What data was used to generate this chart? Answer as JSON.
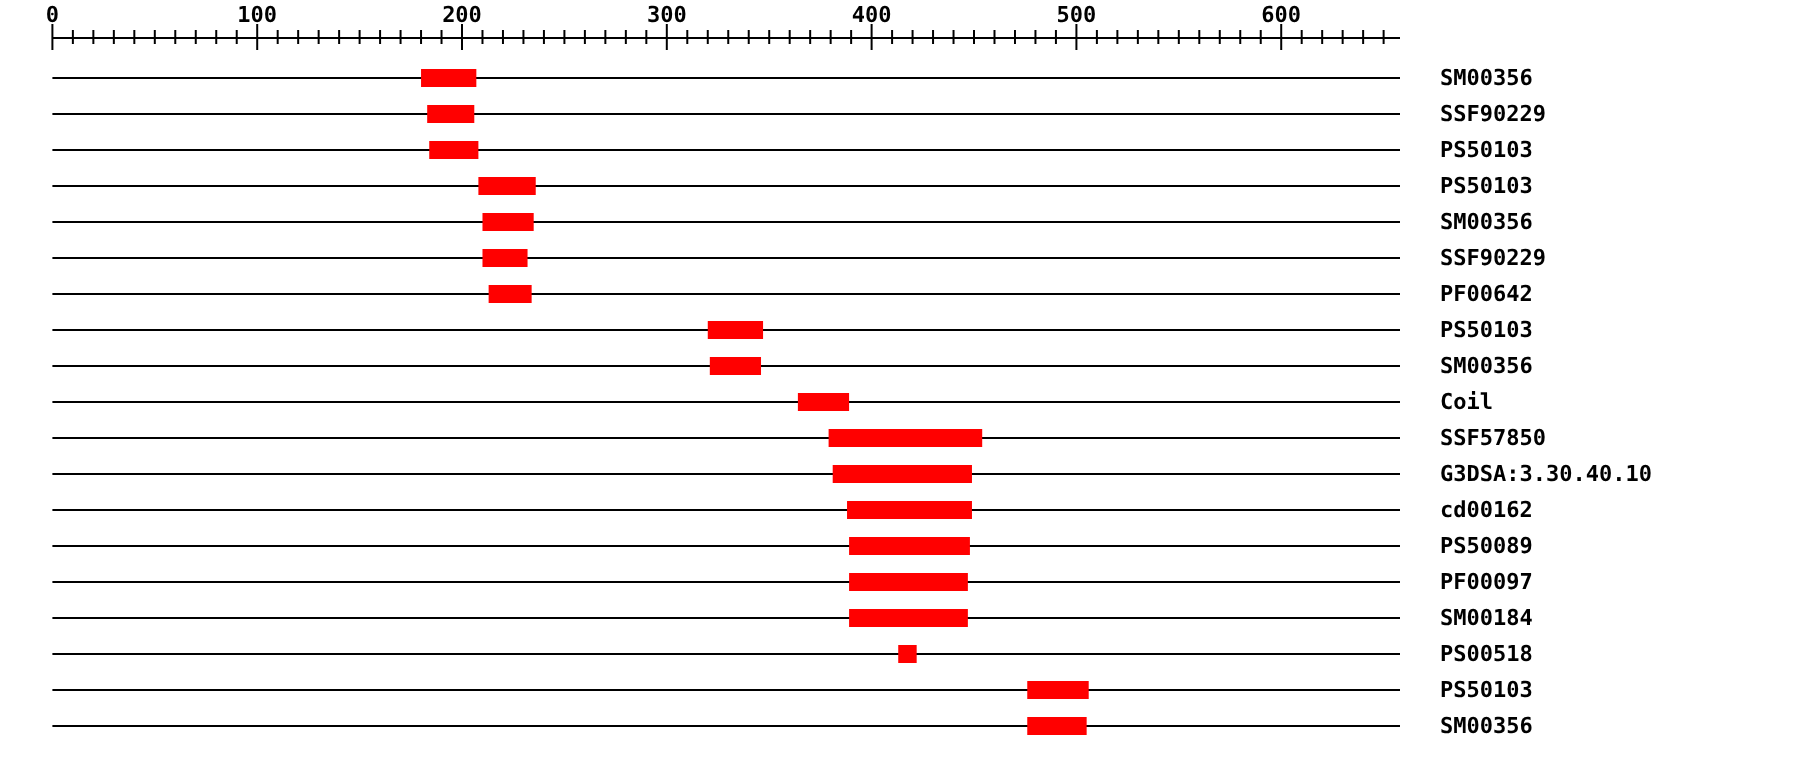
{
  "chart_data": {
    "type": "bar",
    "orientation": "horizontal",
    "color": "#ff0000",
    "grid": "y",
    "categories": [
      "SM00356",
      "SSF90229",
      "PS50103",
      "PS50103",
      "SM00356",
      "SSF90229",
      "PF00642",
      "PS50103",
      "SM00356",
      "Coil",
      "SSF57850",
      "G3DSA:3.30.40.10",
      "cd00162",
      "PS50089",
      "PF00097",
      "SM00184",
      "PS00518",
      "PS50103",
      "SM00356"
    ],
    "base": [
      180,
      183,
      184,
      208,
      210,
      210,
      213,
      320,
      321,
      364,
      379,
      381,
      388,
      389,
      389,
      389,
      413,
      476,
      476
    ],
    "values": [
      27,
      23,
      24,
      28,
      25,
      22,
      21,
      27,
      25,
      25,
      75,
      68,
      61,
      59,
      58,
      58,
      9,
      30,
      29
    ],
    "xlim": [
      0,
      658
    ],
    "xticks": [
      0,
      {
        "value": 10,
        "label": null
      },
      {
        "value": 20,
        "label": null
      },
      {
        "value": 30,
        "label": null
      },
      {
        "value": 40,
        "label": null
      },
      {
        "value": 50,
        "label": null
      },
      {
        "value": 60,
        "label": null
      },
      {
        "value": 70,
        "label": null
      },
      {
        "value": 80,
        "label": null
      },
      {
        "value": 90,
        "label": null
      },
      100,
      {
        "value": 110,
        "label": null
      },
      {
        "value": 120,
        "label": null
      },
      {
        "value": 130,
        "label": null
      },
      {
        "value": 140,
        "label": null
      },
      {
        "value": 150,
        "label": null
      },
      {
        "value": 160,
        "label": null
      },
      {
        "value": 170,
        "label": null
      },
      {
        "value": 180,
        "label": null
      },
      {
        "value": 190,
        "label": null
      },
      200,
      {
        "value": 210,
        "label": null
      },
      {
        "value": 220,
        "label": null
      },
      {
        "value": 230,
        "label": null
      },
      {
        "value": 240,
        "label": null
      },
      {
        "value": 250,
        "label": null
      },
      {
        "value": 260,
        "label": null
      },
      {
        "value": 270,
        "label": null
      },
      {
        "value": 280,
        "label": null
      },
      {
        "value": 290,
        "label": null
      },
      300,
      {
        "value": 310,
        "label": null
      },
      {
        "value": 320,
        "label": null
      },
      {
        "value": 330,
        "label": null
      },
      {
        "value": 340,
        "label": null
      },
      {
        "value": 350,
        "label": null
      },
      {
        "value": 360,
        "label": null
      },
      {
        "value": 370,
        "label": null
      },
      {
        "value": 380,
        "label": null
      },
      {
        "value": 390,
        "label": null
      },
      400,
      {
        "value": 410,
        "label": null
      },
      {
        "value": 420,
        "label": null
      },
      {
        "value": 430,
        "label": null
      },
      {
        "value": 440,
        "label": null
      },
      {
        "value": 450,
        "label": null
      },
      {
        "value": 460,
        "label": null
      },
      {
        "value": 470,
        "label": null
      },
      {
        "value": 480,
        "label": null
      },
      {
        "value": 490,
        "label": null
      },
      500,
      {
        "value": 510,
        "label": null
      },
      {
        "value": 520,
        "label": null
      },
      {
        "value": 530,
        "label": null
      },
      {
        "value": 540,
        "label": null
      },
      {
        "value": 550,
        "label": null
      },
      {
        "value": 560,
        "label": null
      },
      {
        "value": 570,
        "label": null
      },
      {
        "value": 580,
        "label": null
      },
      {
        "value": 590,
        "label": null
      },
      600,
      {
        "value": 610,
        "label": null
      },
      {
        "value": 620,
        "label": null
      },
      {
        "value": 630,
        "label": null
      },
      {
        "value": 640,
        "label": null
      },
      {
        "value": 650,
        "label": null
      }
    ]
  }
}
